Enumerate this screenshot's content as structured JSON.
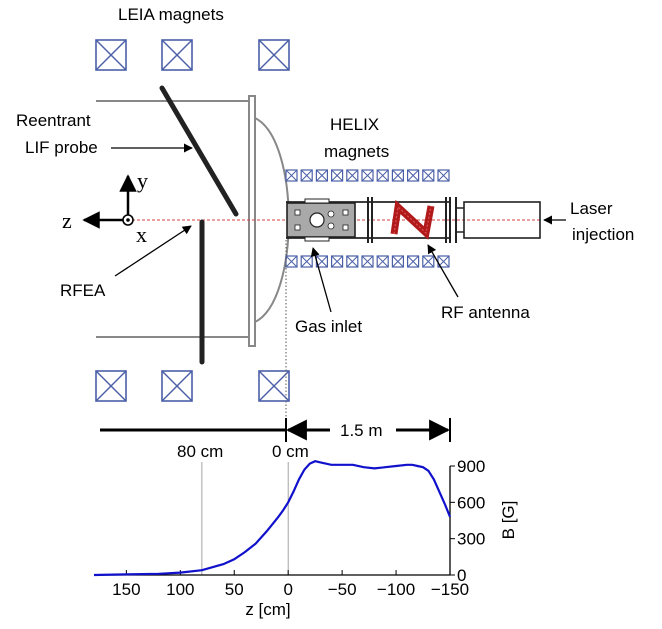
{
  "labels": {
    "leia_magnets": "LEIA magnets",
    "reentrant_line1": "Reentrant",
    "reentrant_line2": "LIF probe",
    "helix_line1": "HELIX",
    "helix_line2": "magnets",
    "axis_y": "y",
    "axis_z": "z",
    "axis_x": "x",
    "rfea": "RFEA",
    "gas_inlet": "Gas inlet",
    "rf_antenna": "RF antenna",
    "laser_line1": "Laser",
    "laser_line2": "injection",
    "scale_80cm": "80 cm",
    "scale_0cm": "0 cm",
    "scale_1_5m": "1.5 m"
  },
  "colors": {
    "magnet": "#4a5fa8",
    "antenna": "#b01a1a",
    "laser": "#d04040",
    "curve": "#1111cc",
    "structure": "#888888"
  },
  "chart_data": {
    "type": "line",
    "title": "",
    "xlabel": "z [cm]",
    "ylabel": "B [G]",
    "xlim": [
      180,
      -150
    ],
    "ylim": [
      0,
      900
    ],
    "x_ticks": [
      150,
      100,
      50,
      0,
      -50,
      -100,
      -150
    ],
    "x_tick_labels": [
      "150",
      "100",
      "50",
      "0",
      "−50",
      "−100",
      "−150"
    ],
    "y_ticks": [
      0,
      300,
      600,
      900
    ],
    "y_tick_labels": [
      "0",
      "300",
      "600",
      "900"
    ],
    "reference_lines_x": [
      80,
      0
    ],
    "series": [
      {
        "x": [
          180,
          150,
          120,
          100,
          80,
          60,
          50,
          40,
          30,
          20,
          10,
          5,
          0,
          -5,
          -10,
          -15,
          -20,
          -25,
          -30,
          -40,
          -50,
          -60,
          -70,
          -80,
          -90,
          -100,
          -110,
          -115,
          -120,
          -125,
          -130,
          -135,
          -140,
          -145,
          -150
        ],
        "values": [
          0,
          5,
          10,
          20,
          40,
          90,
          130,
          190,
          260,
          360,
          470,
          530,
          600,
          690,
          790,
          870,
          920,
          940,
          930,
          910,
          910,
          910,
          890,
          880,
          890,
          900,
          910,
          910,
          900,
          890,
          860,
          790,
          690,
          590,
          480
        ]
      }
    ]
  }
}
